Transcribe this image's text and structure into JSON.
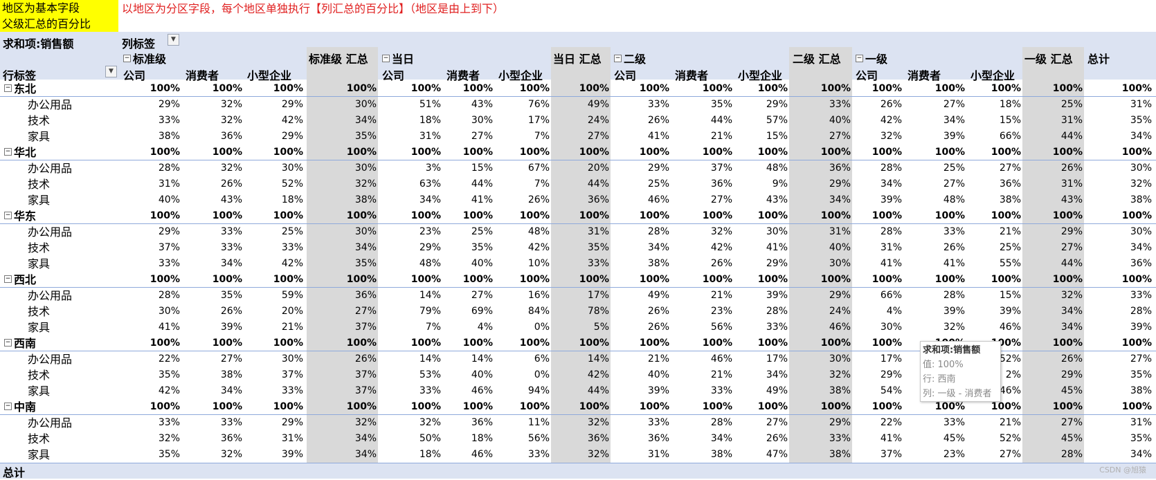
{
  "notes": {
    "yellow_line1": "地区为基本字段",
    "yellow_line2": "父级汇总的百分比",
    "red": "以地区为分区字段，每个地区单独执行【列汇总的百分比】（地区是由上到下）"
  },
  "pivot": {
    "values_label": "求和项:销售额",
    "col_labels": "列标签",
    "row_labels": "行标签",
    "total_label": "总计",
    "groups": [
      {
        "name": "标准级",
        "total": "标准级 汇总"
      },
      {
        "name": "当日",
        "total": "当日 汇总"
      },
      {
        "name": "二级",
        "total": "二级 汇总"
      },
      {
        "name": "一级",
        "total": "一级 汇总"
      }
    ],
    "segments": [
      "公司",
      "消费者",
      "小型企业"
    ],
    "grand_total": "总计",
    "regions": [
      {
        "name": "东北",
        "values": [
          "100%",
          "100%",
          "100%",
          "100%",
          "100%",
          "100%",
          "100%",
          "100%",
          "100%",
          "100%",
          "100%",
          "100%",
          "100%",
          "100%",
          "100%",
          "100%",
          "100%"
        ],
        "items": [
          {
            "name": "办公用品",
            "values": [
              "29%",
              "32%",
              "29%",
              "30%",
              "51%",
              "43%",
              "76%",
              "49%",
              "33%",
              "35%",
              "29%",
              "33%",
              "26%",
              "27%",
              "18%",
              "25%",
              "31%"
            ]
          },
          {
            "name": "技术",
            "values": [
              "33%",
              "32%",
              "42%",
              "34%",
              "18%",
              "30%",
              "17%",
              "24%",
              "26%",
              "44%",
              "57%",
              "40%",
              "42%",
              "34%",
              "15%",
              "31%",
              "35%"
            ]
          },
          {
            "name": "家具",
            "values": [
              "38%",
              "36%",
              "29%",
              "35%",
              "31%",
              "27%",
              "7%",
              "27%",
              "41%",
              "21%",
              "15%",
              "27%",
              "32%",
              "39%",
              "66%",
              "44%",
              "34%"
            ]
          }
        ]
      },
      {
        "name": "华北",
        "values": [
          "100%",
          "100%",
          "100%",
          "100%",
          "100%",
          "100%",
          "100%",
          "100%",
          "100%",
          "100%",
          "100%",
          "100%",
          "100%",
          "100%",
          "100%",
          "100%",
          "100%"
        ],
        "items": [
          {
            "name": "办公用品",
            "values": [
              "28%",
              "32%",
              "30%",
              "30%",
              "3%",
              "15%",
              "67%",
              "20%",
              "29%",
              "37%",
              "48%",
              "36%",
              "28%",
              "25%",
              "27%",
              "26%",
              "30%"
            ]
          },
          {
            "name": "技术",
            "values": [
              "31%",
              "26%",
              "52%",
              "32%",
              "63%",
              "44%",
              "7%",
              "44%",
              "25%",
              "36%",
              "9%",
              "29%",
              "34%",
              "27%",
              "36%",
              "31%",
              "32%"
            ]
          },
          {
            "name": "家具",
            "values": [
              "40%",
              "43%",
              "18%",
              "38%",
              "34%",
              "41%",
              "26%",
              "36%",
              "46%",
              "27%",
              "43%",
              "34%",
              "39%",
              "48%",
              "38%",
              "43%",
              "38%"
            ]
          }
        ]
      },
      {
        "name": "华东",
        "values": [
          "100%",
          "100%",
          "100%",
          "100%",
          "100%",
          "100%",
          "100%",
          "100%",
          "100%",
          "100%",
          "100%",
          "100%",
          "100%",
          "100%",
          "100%",
          "100%",
          "100%"
        ],
        "items": [
          {
            "name": "办公用品",
            "values": [
              "29%",
              "33%",
              "25%",
              "30%",
              "23%",
              "25%",
              "48%",
              "31%",
              "28%",
              "32%",
              "30%",
              "31%",
              "28%",
              "33%",
              "21%",
              "29%",
              "30%"
            ]
          },
          {
            "name": "技术",
            "values": [
              "37%",
              "33%",
              "33%",
              "34%",
              "29%",
              "35%",
              "42%",
              "35%",
              "34%",
              "42%",
              "41%",
              "40%",
              "31%",
              "26%",
              "25%",
              "27%",
              "34%"
            ]
          },
          {
            "name": "家具",
            "values": [
              "33%",
              "34%",
              "42%",
              "35%",
              "48%",
              "40%",
              "10%",
              "33%",
              "38%",
              "26%",
              "29%",
              "30%",
              "41%",
              "41%",
              "55%",
              "44%",
              "36%"
            ]
          }
        ]
      },
      {
        "name": "西北",
        "values": [
          "100%",
          "100%",
          "100%",
          "100%",
          "100%",
          "100%",
          "100%",
          "100%",
          "100%",
          "100%",
          "100%",
          "100%",
          "100%",
          "100%",
          "100%",
          "100%",
          "100%"
        ],
        "items": [
          {
            "name": "办公用品",
            "values": [
              "28%",
              "35%",
              "59%",
              "36%",
              "14%",
              "27%",
              "16%",
              "17%",
              "49%",
              "21%",
              "39%",
              "29%",
              "66%",
              "28%",
              "15%",
              "32%",
              "33%"
            ]
          },
          {
            "name": "技术",
            "values": [
              "30%",
              "26%",
              "20%",
              "27%",
              "79%",
              "69%",
              "84%",
              "78%",
              "26%",
              "23%",
              "28%",
              "24%",
              "4%",
              "39%",
              "39%",
              "34%",
              "28%"
            ]
          },
          {
            "name": "家具",
            "values": [
              "41%",
              "39%",
              "21%",
              "37%",
              "7%",
              "4%",
              "0%",
              "5%",
              "26%",
              "56%",
              "33%",
              "46%",
              "30%",
              "32%",
              "46%",
              "34%",
              "39%"
            ]
          }
        ]
      },
      {
        "name": "西南",
        "values": [
          "100%",
          "100%",
          "100%",
          "100%",
          "100%",
          "100%",
          "100%",
          "100%",
          "100%",
          "100%",
          "100%",
          "100%",
          "100%",
          "100%",
          "100%",
          "100%",
          "100%"
        ],
        "items": [
          {
            "name": "办公用品",
            "values": [
              "22%",
              "27%",
              "30%",
              "26%",
              "14%",
              "14%",
              "6%",
              "14%",
              "21%",
              "46%",
              "17%",
              "30%",
              "17%",
              "",
              "52%",
              "26%",
              "27%"
            ]
          },
          {
            "name": "技术",
            "values": [
              "35%",
              "38%",
              "37%",
              "37%",
              "53%",
              "40%",
              "0%",
              "42%",
              "40%",
              "21%",
              "34%",
              "32%",
              "29%",
              "",
              "2%",
              "29%",
              "35%"
            ]
          },
          {
            "name": "家具",
            "values": [
              "42%",
              "34%",
              "33%",
              "37%",
              "33%",
              "46%",
              "94%",
              "44%",
              "39%",
              "33%",
              "49%",
              "38%",
              "54%",
              "",
              "46%",
              "45%",
              "38%"
            ]
          }
        ]
      },
      {
        "name": "中南",
        "values": [
          "100%",
          "100%",
          "100%",
          "100%",
          "100%",
          "100%",
          "100%",
          "100%",
          "100%",
          "100%",
          "100%",
          "100%",
          "100%",
          "100%",
          "100%",
          "100%",
          "100%"
        ],
        "items": [
          {
            "name": "办公用品",
            "values": [
              "33%",
              "33%",
              "29%",
              "32%",
              "32%",
              "36%",
              "11%",
              "32%",
              "33%",
              "28%",
              "27%",
              "29%",
              "22%",
              "33%",
              "21%",
              "27%",
              "31%"
            ]
          },
          {
            "name": "技术",
            "values": [
              "32%",
              "36%",
              "31%",
              "34%",
              "50%",
              "18%",
              "56%",
              "36%",
              "36%",
              "34%",
              "26%",
              "33%",
              "41%",
              "45%",
              "52%",
              "45%",
              "35%"
            ]
          },
          {
            "name": "家具",
            "values": [
              "35%",
              "32%",
              "39%",
              "34%",
              "18%",
              "46%",
              "33%",
              "32%",
              "31%",
              "38%",
              "47%",
              "38%",
              "37%",
              "23%",
              "27%",
              "28%",
              "34%"
            ]
          }
        ]
      }
    ]
  },
  "tooltip": {
    "title": "求和项:销售额",
    "value": "值: 100%",
    "row": "行: 西南",
    "col": "列: 一级 - 消费者"
  },
  "watermark": "CSDN @旭猿",
  "icons": {
    "expand": "minus-box-icon",
    "filter": "dropdown-arrow-icon"
  },
  "colors": {
    "header_band": "#dce3f2",
    "subtotal_col": "#d9d9d9",
    "note_bg": "#ffff00",
    "note_text": "#e02020"
  }
}
